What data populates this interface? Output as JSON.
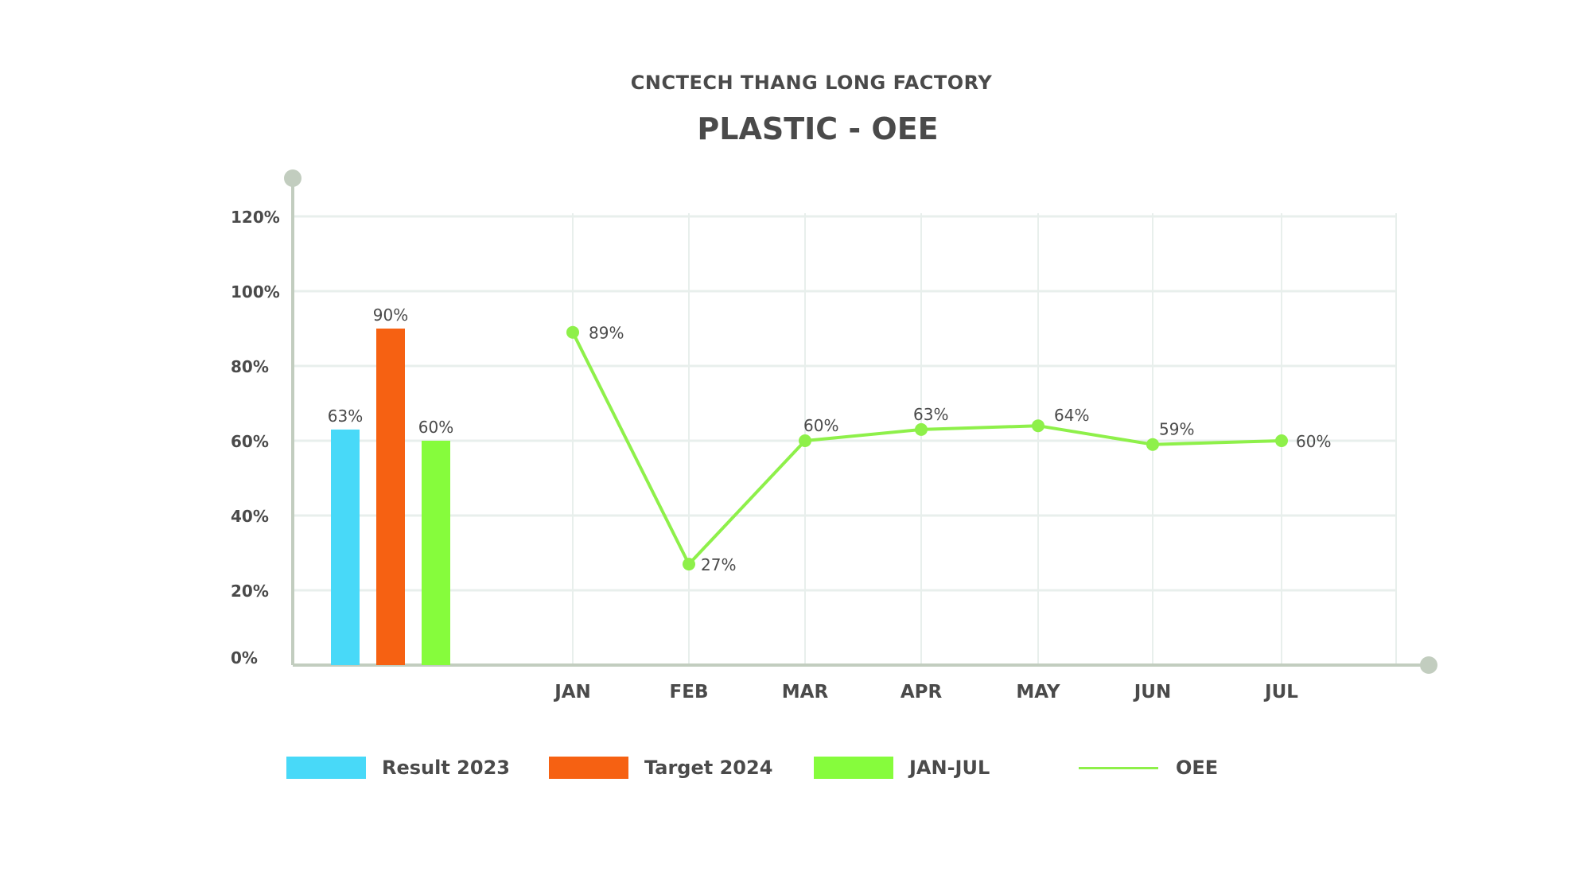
{
  "header": {
    "subtitle": "CNCTECH THANG LONG FACTORY",
    "title": "PLASTIC - OEE"
  },
  "colors": {
    "result_2023": "#48d9f8",
    "target_2024": "#f66112",
    "jan_jul": "#86fc3c",
    "oee_line": "#8ef04a",
    "axis": "#c2cdbf",
    "grid": "#e8efec",
    "text": "#4a4a4a"
  },
  "chart_data": {
    "type": "bar+line",
    "title": "PLASTIC - OEE",
    "subtitle": "CNCTECH THANG LONG FACTORY",
    "y_ticks": [
      "0%",
      "20%",
      "40%",
      "60%",
      "80%",
      "100%",
      "120%"
    ],
    "ylim": [
      0,
      120
    ],
    "grid": true,
    "legend_position": "bottom",
    "summary_bars": [
      {
        "name": "Result 2023",
        "value": 63,
        "label": "63%"
      },
      {
        "name": "Target 2024",
        "value": 90,
        "label": "90%"
      },
      {
        "name": "JAN-JUL",
        "value": 60,
        "label": "60%"
      }
    ],
    "categories": [
      "JAN",
      "FEB",
      "MAR",
      "APR",
      "MAY",
      "JUN",
      "JUL"
    ],
    "series": [
      {
        "name": "OEE",
        "values": [
          89,
          27,
          60,
          63,
          64,
          59,
          60
        ],
        "labels": [
          "89%",
          "27%",
          "60%",
          "63%",
          "64%",
          "59%",
          "60%"
        ]
      }
    ]
  },
  "legend": [
    {
      "label": "Result 2023"
    },
    {
      "label": "Target 2024"
    },
    {
      "label": "JAN-JUL"
    },
    {
      "label": "OEE"
    }
  ]
}
